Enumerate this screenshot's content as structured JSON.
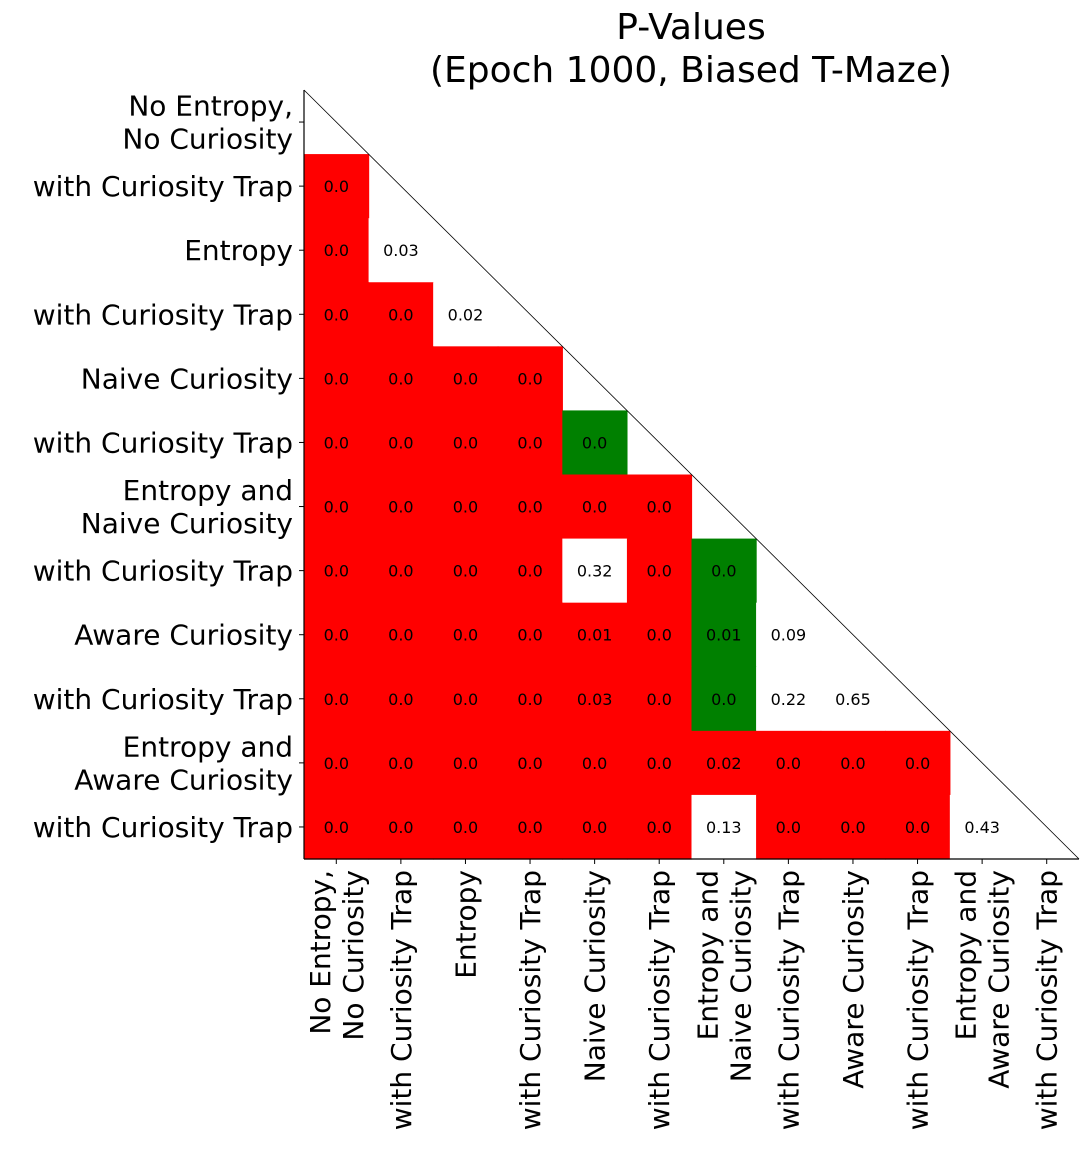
{
  "chart_data": {
    "type": "heatmap",
    "title_lines": [
      "P-Values",
      "(Epoch 1000, Biased T-Maze)"
    ],
    "labels": [
      [
        "No Entropy,",
        "No Curiosity"
      ],
      [
        "with Curiosity Trap"
      ],
      [
        "Entropy"
      ],
      [
        "with Curiosity Trap"
      ],
      [
        "Naive Curiosity"
      ],
      [
        "with Curiosity Trap"
      ],
      [
        "Entropy and",
        "Naive Curiosity"
      ],
      [
        "with Curiosity Trap"
      ],
      [
        "Aware Curiosity"
      ],
      [
        "with Curiosity Trap"
      ],
      [
        "Entropy and",
        "Aware Curiosity"
      ],
      [
        "with Curiosity Trap"
      ]
    ],
    "values": [
      [],
      [
        "0.0"
      ],
      [
        "0.0",
        "0.03"
      ],
      [
        "0.0",
        "0.0",
        "0.02"
      ],
      [
        "0.0",
        "0.0",
        "0.0",
        "0.0"
      ],
      [
        "0.0",
        "0.0",
        "0.0",
        "0.0",
        "0.0"
      ],
      [
        "0.0",
        "0.0",
        "0.0",
        "0.0",
        "0.0",
        "0.0"
      ],
      [
        "0.0",
        "0.0",
        "0.0",
        "0.0",
        "0.32",
        "0.0",
        "0.0"
      ],
      [
        "0.0",
        "0.0",
        "0.0",
        "0.0",
        "0.01",
        "0.0",
        "0.01",
        "0.09"
      ],
      [
        "0.0",
        "0.0",
        "0.0",
        "0.0",
        "0.03",
        "0.0",
        "0.0",
        "0.22",
        "0.65"
      ],
      [
        "0.0",
        "0.0",
        "0.0",
        "0.0",
        "0.0",
        "0.0",
        "0.02",
        "0.0",
        "0.0",
        "0.0"
      ],
      [
        "0.0",
        "0.0",
        "0.0",
        "0.0",
        "0.0",
        "0.0",
        "0.13",
        "0.0",
        "0.0",
        "0.0",
        "0.43"
      ]
    ],
    "cell_colors": [
      [],
      [
        "red"
      ],
      [
        "red",
        "white"
      ],
      [
        "red",
        "red",
        "white"
      ],
      [
        "red",
        "red",
        "red",
        "red"
      ],
      [
        "red",
        "red",
        "red",
        "red",
        "green"
      ],
      [
        "red",
        "red",
        "red",
        "red",
        "red",
        "red"
      ],
      [
        "red",
        "red",
        "red",
        "red",
        "white",
        "red",
        "green"
      ],
      [
        "red",
        "red",
        "red",
        "red",
        "red",
        "red",
        "green",
        "white"
      ],
      [
        "red",
        "red",
        "red",
        "red",
        "red",
        "red",
        "green",
        "white",
        "white"
      ],
      [
        "red",
        "red",
        "red",
        "red",
        "red",
        "red",
        "red",
        "red",
        "red",
        "red"
      ],
      [
        "red",
        "red",
        "red",
        "red",
        "red",
        "red",
        "white",
        "red",
        "red",
        "red",
        "white"
      ]
    ],
    "colors": {
      "red": "#ff0000",
      "green": "#008000",
      "white": "#ffffff"
    }
  }
}
